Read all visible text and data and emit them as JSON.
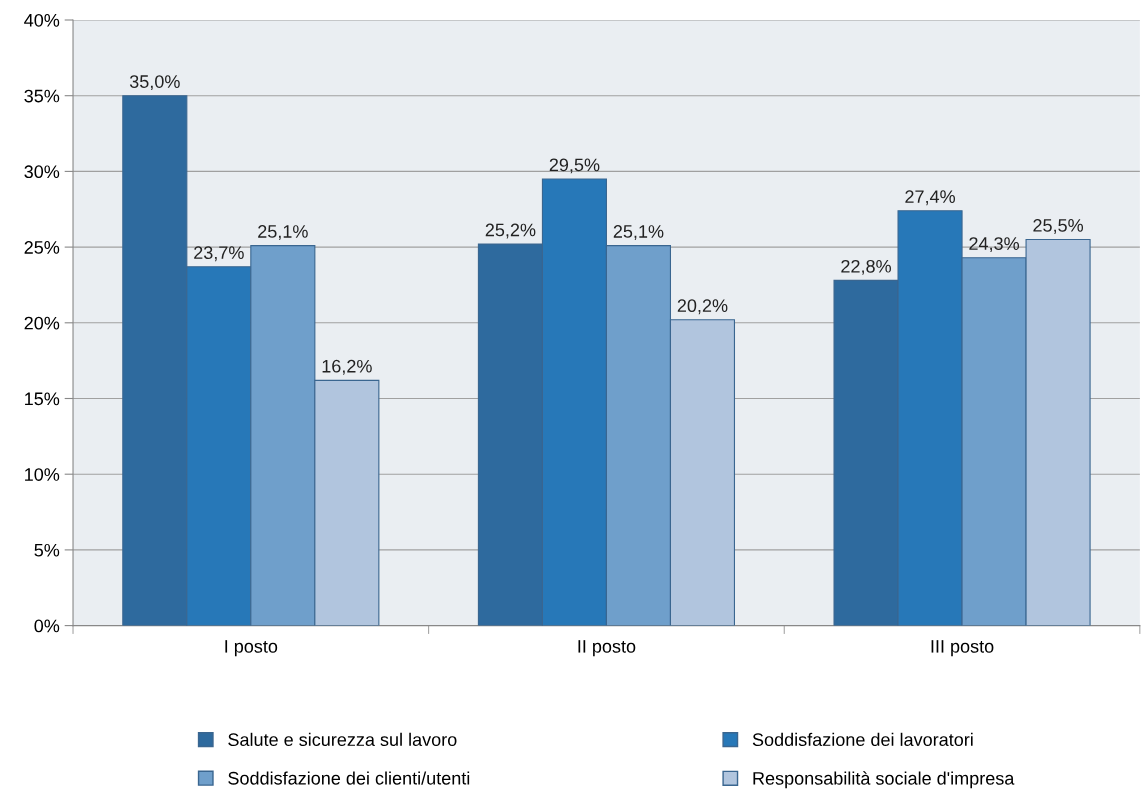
{
  "chart_data": {
    "type": "bar",
    "categories": [
      "I posto",
      "II posto",
      "III posto"
    ],
    "series": [
      {
        "name": "Salute e sicurezza sul lavoro",
        "color": "#2e6a9e",
        "values": [
          35.0,
          25.2,
          22.8
        ],
        "value_labels": [
          "35,0%",
          "25,2%",
          "22,8%"
        ]
      },
      {
        "name": "Soddisfazione dei lavoratori",
        "color": "#2778b8",
        "values": [
          23.7,
          29.5,
          27.4
        ],
        "value_labels": [
          "23,7%",
          "29,5%",
          "27,4%"
        ]
      },
      {
        "name": "Soddisfazione dei clienti/utenti",
        "color": "#6f9fcb",
        "values": [
          25.1,
          25.1,
          24.3
        ],
        "value_labels": [
          "25,1%",
          "25,1%",
          "24,3%"
        ]
      },
      {
        "name": "Responsabilità sociale d'impresa",
        "color": "#b1c5de",
        "values": [
          16.2,
          20.2,
          25.5
        ],
        "value_labels": [
          "16,2%",
          "20,2%",
          "25,5%"
        ]
      }
    ],
    "ylim": [
      0,
      40
    ],
    "yticks": [
      {
        "value": 0,
        "label": "0%"
      },
      {
        "value": 5,
        "label": "5%"
      },
      {
        "value": 10,
        "label": "10%"
      },
      {
        "value": 15,
        "label": "15%"
      },
      {
        "value": 20,
        "label": "20%"
      },
      {
        "value": 25,
        "label": "25%"
      },
      {
        "value": 30,
        "label": "30%"
      },
      {
        "value": 35,
        "label": "35%"
      },
      {
        "value": 40,
        "label": "40%"
      }
    ],
    "grid": "y",
    "legend": "bottom"
  }
}
